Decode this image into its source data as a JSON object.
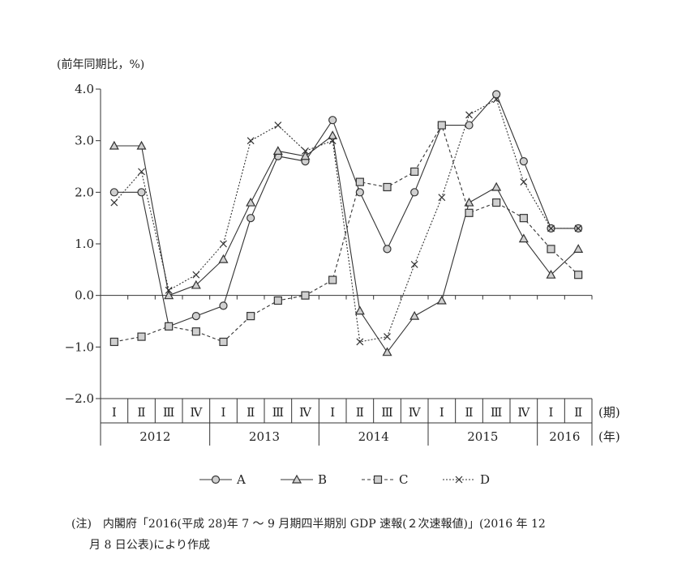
{
  "chart_data": {
    "type": "line",
    "ylabel": "(前年同期比，%)",
    "ylim": [
      -2.0,
      4.0
    ],
    "yticks": [
      "4.0",
      "3.0",
      "2.0",
      "1.0",
      "0.0",
      "−1.0",
      "−2.0"
    ],
    "yticks_values": [
      4,
      3,
      2,
      1,
      0,
      -1,
      -2
    ],
    "quarters": [
      "Ⅰ",
      "Ⅱ",
      "Ⅲ",
      "Ⅳ",
      "Ⅰ",
      "Ⅱ",
      "Ⅲ",
      "Ⅳ",
      "Ⅰ",
      "Ⅱ",
      "Ⅲ",
      "Ⅳ",
      "Ⅰ",
      "Ⅱ",
      "Ⅲ",
      "Ⅳ",
      "Ⅰ",
      "Ⅱ"
    ],
    "quarter_unit": "(期)",
    "years": [
      {
        "label": "2012",
        "quarters": 4
      },
      {
        "label": "2013",
        "quarters": 4
      },
      {
        "label": "2014",
        "quarters": 4
      },
      {
        "label": "2015",
        "quarters": 4
      },
      {
        "label": "2016",
        "quarters": 2
      }
    ],
    "year_unit": "(年)",
    "series": [
      {
        "name": "A",
        "marker": "circle",
        "dash": "solid",
        "values": [
          2.0,
          2.0,
          -0.6,
          -0.4,
          -0.2,
          1.5,
          2.7,
          2.6,
          3.4,
          2.0,
          0.9,
          2.0,
          3.3,
          3.3,
          3.9,
          2.6,
          1.3,
          1.3
        ]
      },
      {
        "name": "B",
        "marker": "triangle",
        "dash": "solid",
        "values": [
          2.9,
          2.9,
          0.0,
          0.2,
          0.7,
          1.8,
          2.8,
          2.7,
          3.1,
          -0.3,
          -1.1,
          -0.4,
          -0.1,
          1.8,
          2.1,
          1.1,
          0.4,
          0.9
        ]
      },
      {
        "name": "C",
        "marker": "square",
        "dash": "dashed",
        "values": [
          -0.9,
          -0.8,
          -0.6,
          -0.7,
          -0.9,
          -0.4,
          -0.1,
          0.0,
          0.3,
          2.2,
          2.1,
          2.4,
          3.3,
          1.6,
          1.8,
          1.5,
          0.9,
          0.4
        ]
      },
      {
        "name": "D",
        "marker": "cross",
        "dash": "dotted",
        "values": [
          1.8,
          2.4,
          0.1,
          0.4,
          1.0,
          3.0,
          3.3,
          2.8,
          3.0,
          -0.9,
          -0.8,
          0.6,
          1.9,
          3.5,
          3.8,
          2.2,
          1.3,
          1.3
        ]
      }
    ]
  },
  "note": {
    "line1": "(注)　内閣府「2016(平成 28)年 7 ～ 9 月期四半期別 GDP 速報(２次速報値)」(2016 年 12",
    "line2": "月 8 日公表)により作成"
  }
}
